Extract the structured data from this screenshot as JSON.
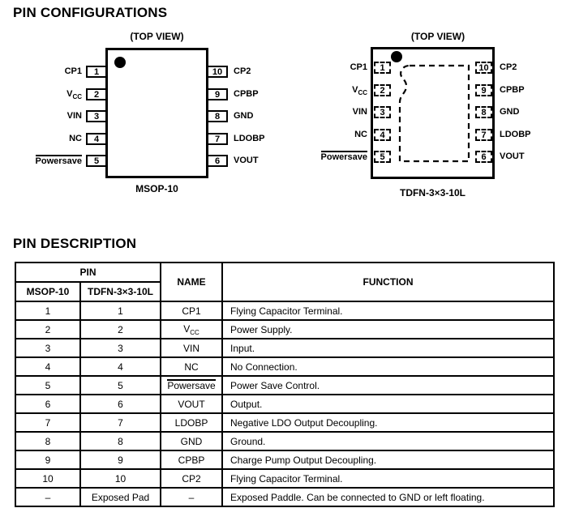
{
  "sections": {
    "configurations_title": "PIN CONFIGURATIONS",
    "description_title": "PIN DESCRIPTION"
  },
  "diagrams": {
    "top_view_label": "(TOP VIEW)",
    "packages": [
      {
        "id": "msop",
        "name": "MSOP-10",
        "outline": "solid"
      },
      {
        "id": "tdfn",
        "name": "TDFN-3×3-10L",
        "outline": "dashed",
        "exposed_pad": true
      }
    ],
    "pins": {
      "left": [
        {
          "num": "1",
          "label": "CP1",
          "type": "plain"
        },
        {
          "num": "2",
          "label": "VCC",
          "type": "vcc"
        },
        {
          "num": "3",
          "label": "VIN",
          "type": "plain"
        },
        {
          "num": "4",
          "label": "NC",
          "type": "plain"
        },
        {
          "num": "5",
          "label": "Powersave",
          "type": "overline"
        }
      ],
      "right": [
        {
          "num": "10",
          "label": "CP2",
          "type": "plain"
        },
        {
          "num": "9",
          "label": "CPBP",
          "type": "plain"
        },
        {
          "num": "8",
          "label": "GND",
          "type": "plain"
        },
        {
          "num": "7",
          "label": "LDOBP",
          "type": "plain"
        },
        {
          "num": "6",
          "label": "VOUT",
          "type": "plain"
        }
      ]
    }
  },
  "table": {
    "headers": {
      "pin": "PIN",
      "msop": "MSOP-10",
      "tdfn": "TDFN-3×3-10L",
      "name": "NAME",
      "function": "FUNCTION"
    },
    "rows": [
      {
        "msop": "1",
        "tdfn": "1",
        "name": "CP1",
        "name_type": "plain",
        "function": "Flying Capacitor Terminal."
      },
      {
        "msop": "2",
        "tdfn": "2",
        "name": "VCC",
        "name_type": "vcc",
        "function": "Power Supply."
      },
      {
        "msop": "3",
        "tdfn": "3",
        "name": "VIN",
        "name_type": "plain",
        "function": "Input."
      },
      {
        "msop": "4",
        "tdfn": "4",
        "name": "NC",
        "name_type": "plain",
        "function": "No Connection."
      },
      {
        "msop": "5",
        "tdfn": "5",
        "name": "Powersave",
        "name_type": "overline",
        "function": "Power Save Control."
      },
      {
        "msop": "6",
        "tdfn": "6",
        "name": "VOUT",
        "name_type": "plain",
        "function": "Output."
      },
      {
        "msop": "7",
        "tdfn": "7",
        "name": "LDOBP",
        "name_type": "plain",
        "function": "Negative LDO Output Decoupling."
      },
      {
        "msop": "8",
        "tdfn": "8",
        "name": "GND",
        "name_type": "plain",
        "function": "Ground."
      },
      {
        "msop": "9",
        "tdfn": "9",
        "name": "CPBP",
        "name_type": "plain",
        "function": "Charge Pump Output Decoupling."
      },
      {
        "msop": "10",
        "tdfn": "10",
        "name": "CP2",
        "name_type": "plain",
        "function": "Flying Capacitor Terminal."
      },
      {
        "msop": "–",
        "tdfn": "Exposed Pad",
        "name": "–",
        "name_type": "plain",
        "function": "Exposed Paddle. Can be connected to GND or left floating."
      }
    ]
  }
}
